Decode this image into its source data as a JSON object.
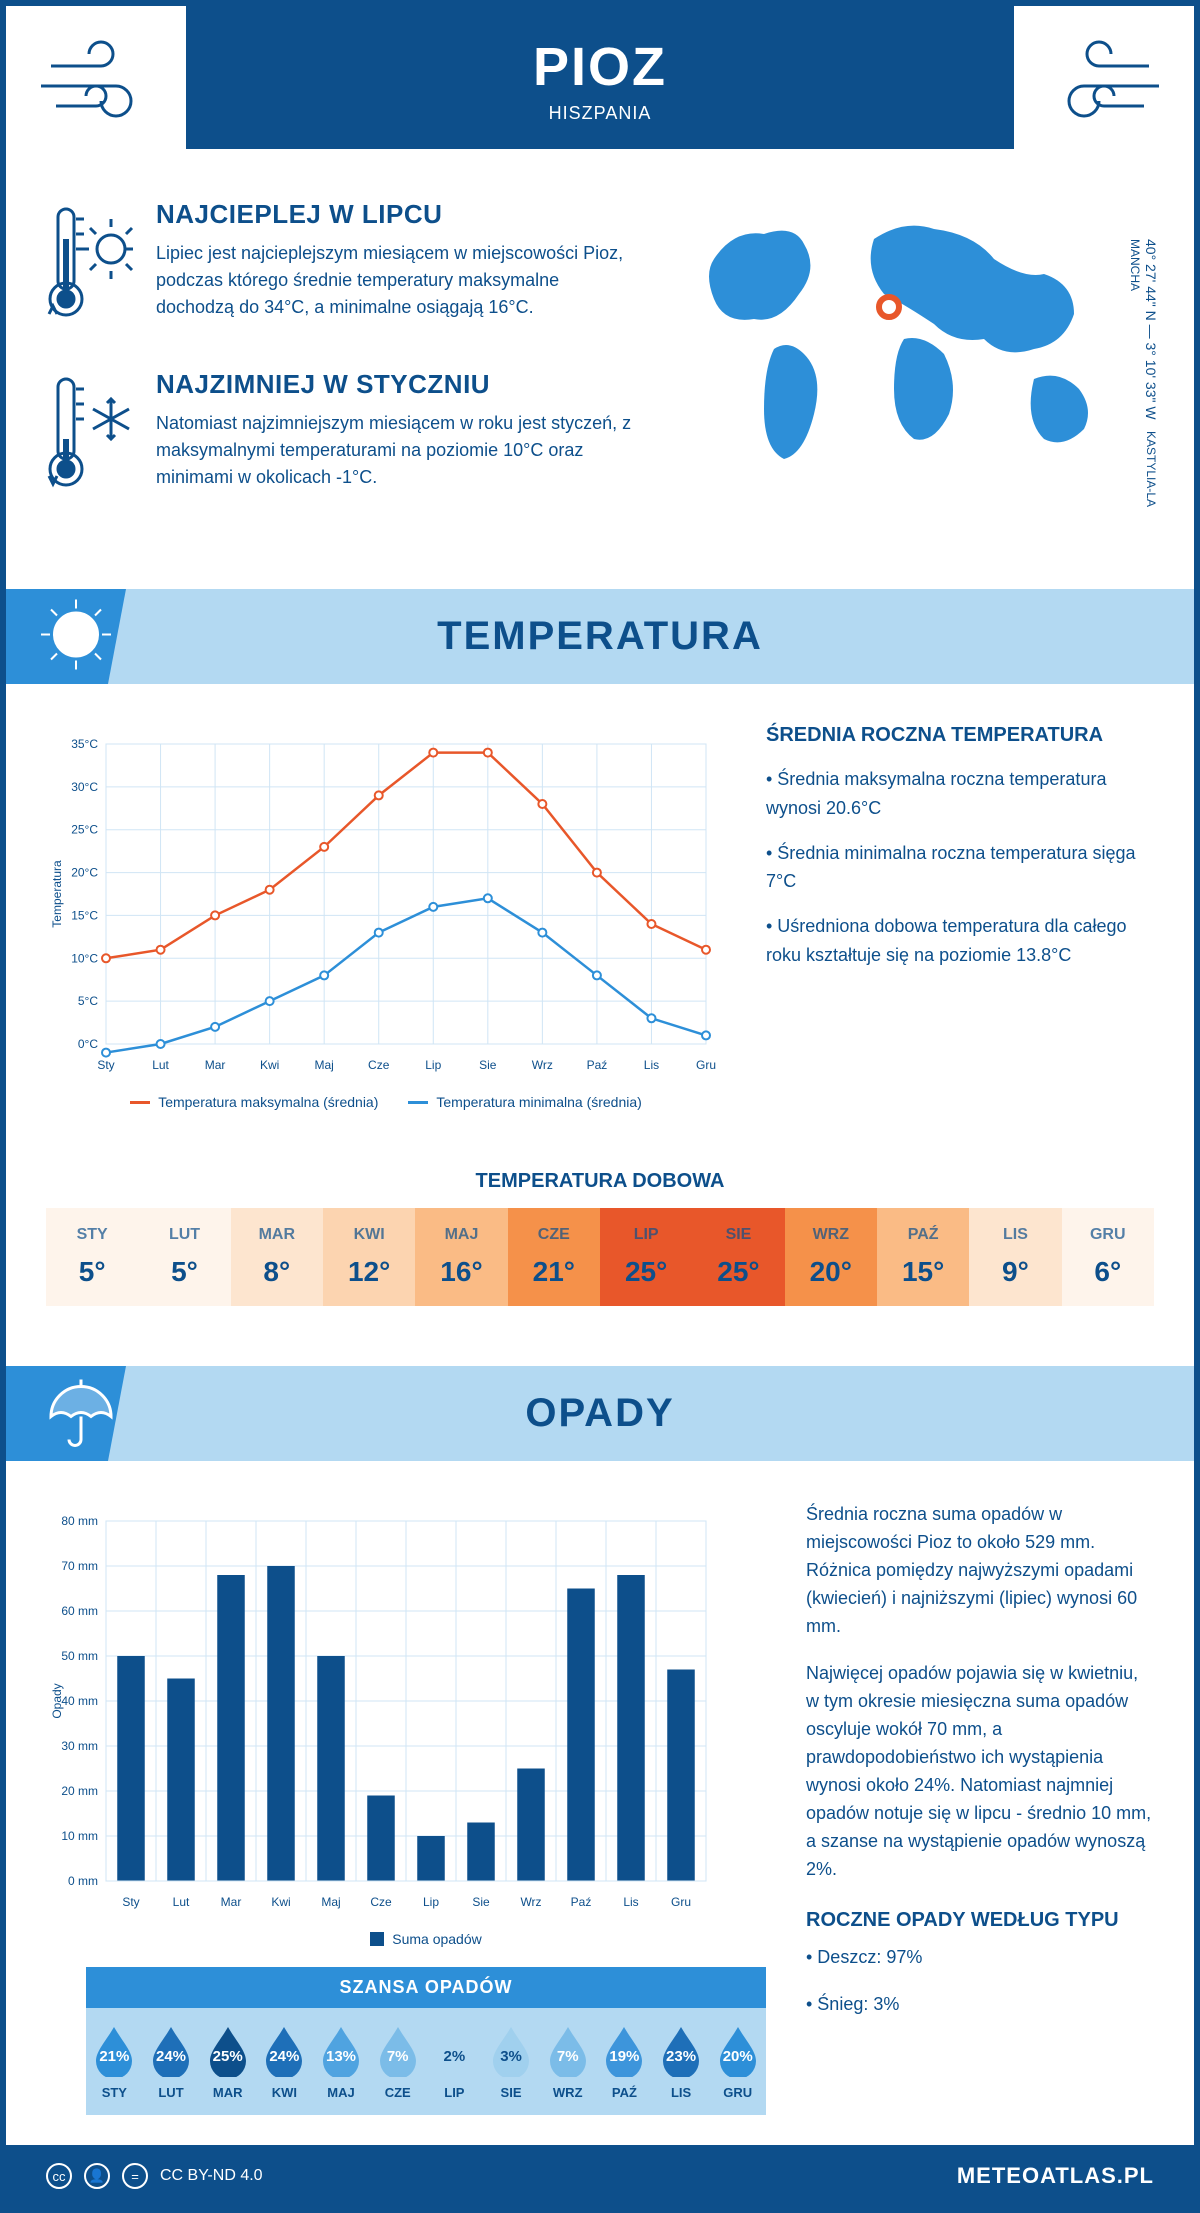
{
  "header": {
    "title": "PIOZ",
    "subtitle": "HISZPANIA"
  },
  "coords": {
    "lat": "40° 27' 44\" N — 3° 10' 33\" W",
    "region": "KASTYLIA-LA MANCHA"
  },
  "hottest": {
    "title": "NAJCIEPLEJ W LIPCU",
    "text": "Lipiec jest najcieplejszym miesiącem w miejscowości Pioz, podczas którego średnie temperatury maksymalne dochodzą do 34°C, a minimalne osiągają 16°C."
  },
  "coldest": {
    "title": "NAJZIMNIEJ W STYCZNIU",
    "text": "Natomiast najzimniejszym miesiącem w roku jest styczeń, z maksymalnymi temperaturami na poziomie 10°C oraz minimami w okolicach -1°C."
  },
  "temp_section": {
    "title": "TEMPERATURA",
    "side_title": "ŚREDNIA ROCZNA TEMPERATURA",
    "bullets": [
      "• Średnia maksymalna roczna temperatura wynosi 20.6°C",
      "• Średnia minimalna roczna temperatura sięga 7°C",
      "• Uśredniona dobowa temperatura dla całego roku kształtuje się na poziomie 13.8°C"
    ],
    "chart": {
      "months": [
        "Sty",
        "Lut",
        "Mar",
        "Kwi",
        "Maj",
        "Cze",
        "Lip",
        "Sie",
        "Wrz",
        "Paź",
        "Lis",
        "Gru"
      ],
      "max_series": [
        10,
        11,
        15,
        18,
        23,
        29,
        34,
        34,
        28,
        20,
        14,
        11
      ],
      "min_series": [
        -1,
        0,
        2,
        5,
        8,
        13,
        16,
        17,
        13,
        8,
        3,
        1
      ],
      "ylabel": "Temperatura",
      "ylim": [
        0,
        35
      ],
      "ytick_step": 5,
      "ytick_suffix": "°C",
      "max_color": "#e8572a",
      "min_color": "#2d8fd8",
      "grid_color": "#d0e5f5",
      "bg": "#ffffff",
      "legend_max": "Temperatura maksymalna (średnia)",
      "legend_min": "Temperatura minimalna (średnia)"
    },
    "daily_title": "TEMPERATURA DOBOWA",
    "daily": {
      "months": [
        "STY",
        "LUT",
        "MAR",
        "KWI",
        "MAJ",
        "CZE",
        "LIP",
        "SIE",
        "WRZ",
        "PAŹ",
        "LIS",
        "GRU"
      ],
      "values": [
        "5°",
        "5°",
        "8°",
        "12°",
        "16°",
        "21°",
        "25°",
        "25°",
        "20°",
        "15°",
        "9°",
        "6°"
      ],
      "colors": [
        "#fef4eb",
        "#fef4eb",
        "#fde5cf",
        "#fcd4b0",
        "#fabb85",
        "#f5914a",
        "#e8572a",
        "#e8572a",
        "#f5914a",
        "#fabb85",
        "#fde5cf",
        "#fef4eb"
      ]
    }
  },
  "precip_section": {
    "title": "OPADY",
    "chart": {
      "months": [
        "Sty",
        "Lut",
        "Mar",
        "Kwi",
        "Maj",
        "Cze",
        "Lip",
        "Sie",
        "Wrz",
        "Paź",
        "Lis",
        "Gru"
      ],
      "values": [
        50,
        45,
        68,
        70,
        50,
        19,
        10,
        13,
        25,
        65,
        68,
        47
      ],
      "ylabel": "Opady",
      "ylim": [
        0,
        80
      ],
      "ytick_step": 10,
      "ytick_suffix": " mm",
      "bar_color": "#0d4f8b",
      "grid_color": "#d0e5f5",
      "bg": "#ffffff",
      "legend": "Suma opadów"
    },
    "side_p1": "Średnia roczna suma opadów w miejscowości Pioz to około 529 mm. Różnica pomiędzy najwyższymi opadami (kwiecień) i najniższymi (lipiec) wynosi 60 mm.",
    "side_p2": "Najwięcej opadów pojawia się w kwietniu, w tym okresie miesięczna suma opadów oscyluje wokół 70 mm, a prawdopodobieństwo ich wystąpienia wynosi około 24%. Natomiast najmniej opadów notuje się w lipcu - średnio 10 mm, a szanse na wystąpienie opadów wynoszą 2%.",
    "type_title": "ROCZNE OPADY WEDŁUG TYPU",
    "type_bullets": [
      "• Deszcz: 97%",
      "• Śnieg: 3%"
    ],
    "chance": {
      "title": "SZANSA OPADÓW",
      "months": [
        "STY",
        "LUT",
        "MAR",
        "KWI",
        "MAJ",
        "CZE",
        "LIP",
        "SIE",
        "WRZ",
        "PAŹ",
        "LIS",
        "GRU"
      ],
      "values": [
        "21%",
        "24%",
        "25%",
        "24%",
        "13%",
        "7%",
        "2%",
        "3%",
        "7%",
        "19%",
        "23%",
        "20%"
      ],
      "colors": [
        "#2d8fd8",
        "#1e6fb8",
        "#0d4f8b",
        "#1e6fb8",
        "#4fa3e0",
        "#7bbce8",
        "#b3d9f2",
        "#a0d0ee",
        "#7bbce8",
        "#3d95db",
        "#1e6fb8",
        "#2d8fd8"
      ],
      "textcolors": [
        "#fff",
        "#fff",
        "#fff",
        "#fff",
        "#fff",
        "#fff",
        "#0d4f8b",
        "#0d4f8b",
        "#fff",
        "#fff",
        "#fff",
        "#fff"
      ]
    }
  },
  "footer": {
    "license": "CC BY-ND 4.0",
    "brand": "METEOATLAS.PL"
  },
  "colors": {
    "primary": "#0d4f8b",
    "light": "#b3d9f2",
    "mid": "#2d8fd8"
  }
}
